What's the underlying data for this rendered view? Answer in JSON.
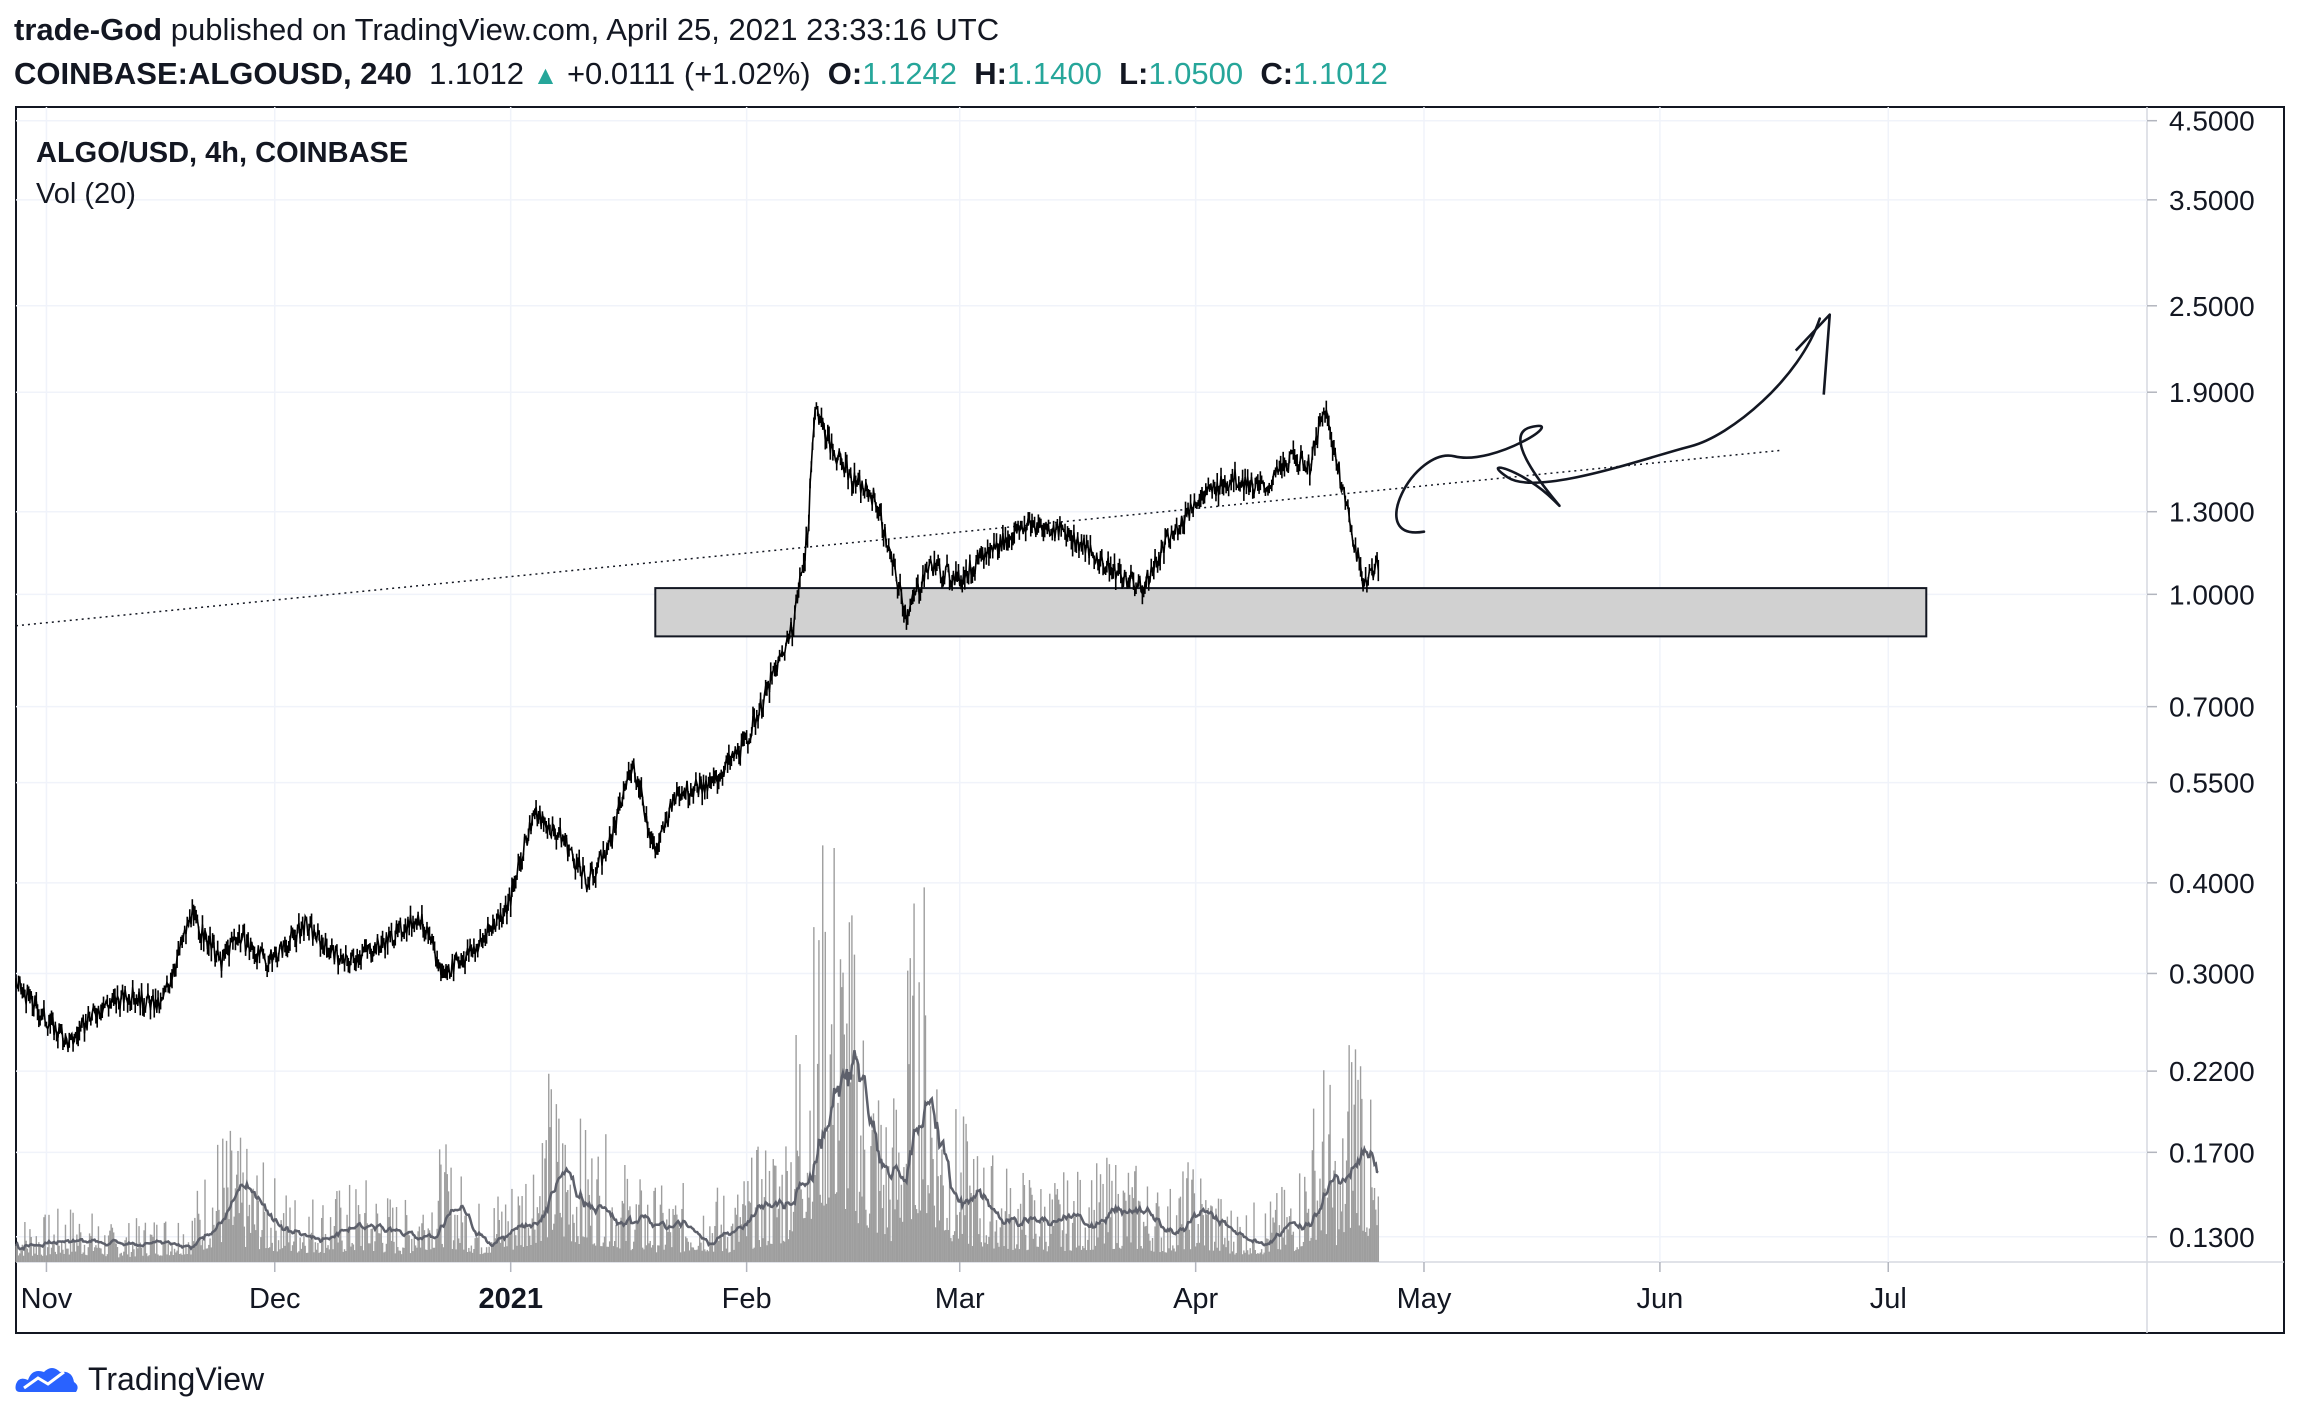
{
  "header": {
    "author": "trade-God",
    "published": "published on TradingView.com, April 25, 2021 23:33:16 UTC",
    "symbol": "COINBASE:ALGOUSD, 240",
    "last": "1.1012",
    "change": "+0.0111 (+1.02%)",
    "o_label": "O:",
    "o": "1.1242",
    "h_label": "H:",
    "h": "1.1400",
    "l_label": "L:",
    "l": "1.0500",
    "c_label": "C:",
    "c": "1.1012"
  },
  "legend": {
    "pair": "ALGO/USD, 4h, COINBASE",
    "vol": "Vol (20)"
  },
  "footer": {
    "brand": "TradingView",
    "logo": "tradingview-cloud-icon"
  },
  "colors": {
    "up": "#26a69a",
    "candle": "#000000",
    "zone_fill": "#d1d1d1",
    "volume": "#9e9e9e",
    "grid": "#f0f3fa"
  },
  "chart_data": {
    "type": "line",
    "title": "ALGO/USD, 4h, COINBASE",
    "y_scale": "log",
    "ylim": [
      0.12,
      4.7
    ],
    "y_ticks": [
      "4.5000",
      "3.5000",
      "2.5000",
      "1.9000",
      "1.3000",
      "1.0000",
      "0.7000",
      "0.5500",
      "0.4000",
      "0.3000",
      "0.2200",
      "0.1700",
      "0.1300"
    ],
    "x_ticks": [
      {
        "label": "Nov",
        "date": "2020-11-01",
        "bold": false
      },
      {
        "label": "Dec",
        "date": "2020-12-01",
        "bold": false
      },
      {
        "label": "2021",
        "date": "2021-01-01",
        "bold": true
      },
      {
        "label": "Feb",
        "date": "2021-02-01",
        "bold": false
      },
      {
        "label": "Mar",
        "date": "2021-03-01",
        "bold": false
      },
      {
        "label": "Apr",
        "date": "2021-04-01",
        "bold": false
      },
      {
        "label": "May",
        "date": "2021-05-01",
        "bold": false
      },
      {
        "label": "Jun",
        "date": "2021-06-01",
        "bold": false
      },
      {
        "label": "Jul",
        "date": "2021-07-01",
        "bold": false
      }
    ],
    "x_range": [
      "2020-10-28",
      "2021-08-04"
    ],
    "series": [
      {
        "x": [
          "2020-10-28",
          "2020-11-01",
          "2020-11-04",
          "2020-11-08",
          "2020-11-12",
          "2020-11-16",
          "2020-11-20",
          "2020-11-24",
          "2020-11-26",
          "2020-11-30",
          "2020-12-05",
          "2020-12-10",
          "2020-12-15",
          "2020-12-20",
          "2020-12-23",
          "2020-12-28",
          "2021-01-01",
          "2021-01-04",
          "2021-01-08",
          "2021-01-11",
          "2021-01-14",
          "2021-01-17",
          "2021-01-20",
          "2021-01-23",
          "2021-01-27",
          "2021-02-01",
          "2021-02-04",
          "2021-02-07",
          "2021-02-09",
          "2021-02-10",
          "2021-02-12",
          "2021-02-15",
          "2021-02-18",
          "2021-02-20",
          "2021-02-22",
          "2021-02-25",
          "2021-03-01",
          "2021-03-05",
          "2021-03-10",
          "2021-03-15",
          "2021-03-20",
          "2021-03-25",
          "2021-03-28",
          "2021-04-01",
          "2021-04-06",
          "2021-04-10",
          "2021-04-14",
          "2021-04-16",
          "2021-04-18",
          "2021-04-21",
          "2021-04-23",
          "2021-04-25"
        ],
        "values": [
          0.29,
          0.26,
          0.24,
          0.27,
          0.28,
          0.27,
          0.36,
          0.31,
          0.34,
          0.31,
          0.35,
          0.31,
          0.33,
          0.36,
          0.3,
          0.33,
          0.38,
          0.5,
          0.46,
          0.4,
          0.45,
          0.59,
          0.44,
          0.54,
          0.54,
          0.63,
          0.75,
          0.9,
          1.2,
          1.84,
          1.6,
          1.44,
          1.35,
          1.12,
          0.94,
          1.1,
          1.05,
          1.15,
          1.25,
          1.22,
          1.1,
          1.02,
          1.17,
          1.35,
          1.45,
          1.4,
          1.55,
          1.5,
          1.8,
          1.3,
          1.04,
          1.1
        ]
      }
    ],
    "volume": {
      "ylim": [
        0,
        0.6
      ],
      "x": [
        "2020-10-28",
        "2020-11-01",
        "2020-11-05",
        "2020-11-10",
        "2020-11-15",
        "2020-11-20",
        "2020-11-24",
        "2020-11-28",
        "2020-12-03",
        "2020-12-08",
        "2020-12-13",
        "2020-12-18",
        "2020-12-23",
        "2020-12-28",
        "2021-01-02",
        "2021-01-06",
        "2021-01-10",
        "2021-01-14",
        "2021-01-18",
        "2021-01-22",
        "2021-01-26",
        "2021-01-30",
        "2021-02-03",
        "2021-02-06",
        "2021-02-08",
        "2021-02-10",
        "2021-02-12",
        "2021-02-14",
        "2021-02-17",
        "2021-02-20",
        "2021-02-22",
        "2021-02-24",
        "2021-02-27",
        "2021-03-03",
        "2021-03-08",
        "2021-03-13",
        "2021-03-18",
        "2021-03-23",
        "2021-03-28",
        "2021-04-01",
        "2021-04-05",
        "2021-04-10",
        "2021-04-14",
        "2021-04-18",
        "2021-04-20",
        "2021-04-22",
        "2021-04-25"
      ],
      "values": [
        0.04,
        0.04,
        0.05,
        0.03,
        0.04,
        0.05,
        0.12,
        0.09,
        0.06,
        0.06,
        0.07,
        0.05,
        0.1,
        0.05,
        0.08,
        0.16,
        0.12,
        0.1,
        0.07,
        0.06,
        0.07,
        0.06,
        0.1,
        0.12,
        0.25,
        0.3,
        0.4,
        0.33,
        0.2,
        0.13,
        0.25,
        0.35,
        0.15,
        0.1,
        0.08,
        0.07,
        0.08,
        0.09,
        0.06,
        0.09,
        0.05,
        0.05,
        0.07,
        0.18,
        0.09,
        0.28,
        0.06
      ]
    },
    "annotations": [
      {
        "type": "trendline",
        "style": "dotted",
        "from": [
          "2020-10-28",
          0.905
        ],
        "to": [
          "2021-06-17",
          1.58
        ]
      },
      {
        "type": "rectangle",
        "from": [
          "2021-01-20",
          0.875
        ],
        "to": [
          "2021-07-06",
          1.02
        ]
      },
      {
        "type": "freehand",
        "description": "loop",
        "points": [
          [
            "2021-05-01",
            1.22
          ],
          [
            "2021-05-05",
            1.55
          ],
          [
            "2021-05-15",
            1.7
          ],
          [
            "2021-05-18",
            1.35
          ],
          [
            "2021-05-12",
            1.45
          ],
          [
            "2021-06-05",
            1.6
          ],
          [
            "2021-06-22",
            2.4
          ]
        ]
      }
    ]
  }
}
